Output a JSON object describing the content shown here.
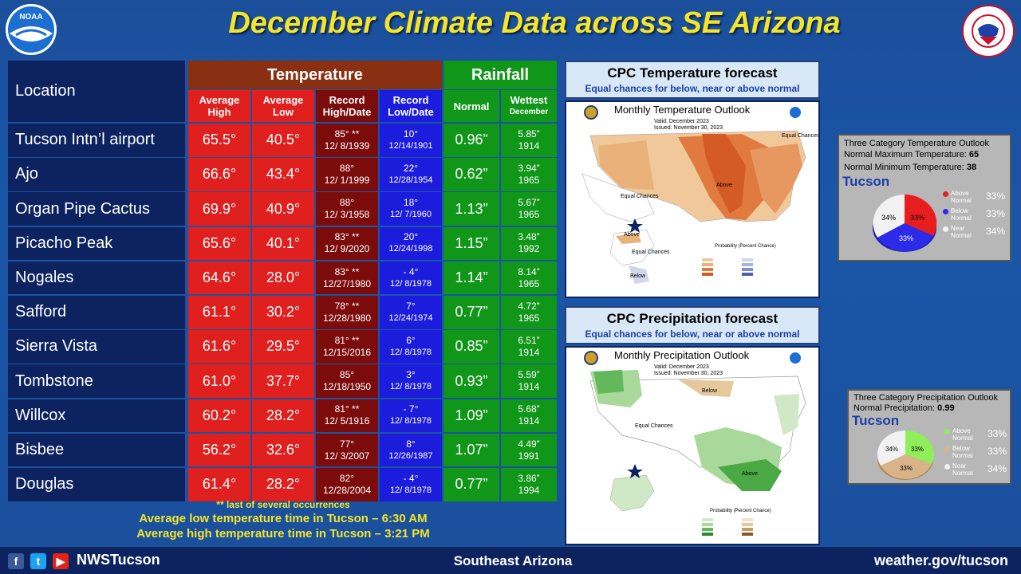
{
  "title": "December Climate Data across SE Arizona",
  "logos": {
    "noaa_text": "NOAA",
    "nws_text": "NATIONAL WEATHER SERVICE"
  },
  "table": {
    "location_header": "Location",
    "temperature_header": "Temperature",
    "rainfall_header": "Rainfall",
    "col_avg_high": "Average High",
    "col_avg_low": "Average Low",
    "col_rec_high": "Record High/Date",
    "col_rec_low": "Record Low/Date",
    "col_normal": "Normal",
    "col_wettest_1": "Wettest",
    "col_wettest_2": "December",
    "rows": [
      {
        "name": "Tucson Intn’l airport",
        "hi": "65.5°",
        "lo": "40.5°",
        "rh": "85° **",
        "rhd": "12/ 8/1939",
        "rl": "10°",
        "rld": "12/14/1901",
        "norm": "0.96”",
        "wet": "5.85”",
        "wety": "1914"
      },
      {
        "name": "Ajo",
        "hi": "66.6°",
        "lo": "43.4°",
        "rh": "88°",
        "rhd": "12/ 1/1999",
        "rl": "22°",
        "rld": "12/28/1954",
        "norm": "0.62”",
        "wet": "3.94”",
        "wety": "1965"
      },
      {
        "name": "Organ Pipe Cactus",
        "hi": "69.9°",
        "lo": "40.9°",
        "rh": "88°",
        "rhd": "12/ 3/1958",
        "rl": "18°",
        "rld": "12/ 7/1960",
        "norm": "1.13”",
        "wet": "5.67”",
        "wety": "1965"
      },
      {
        "name": "Picacho Peak",
        "hi": "65.6°",
        "lo": "40.1°",
        "rh": "83° **",
        "rhd": "12/ 9/2020",
        "rl": "20°",
        "rld": "12/24/1998",
        "norm": "1.15”",
        "wet": "3.48”",
        "wety": "1992"
      },
      {
        "name": "Nogales",
        "hi": "64.6°",
        "lo": "28.0°",
        "rh": "83° **",
        "rhd": "12/27/1980",
        "rl": "- 4°",
        "rld": "12/ 8/1978",
        "norm": "1.14”",
        "wet": "8.14”",
        "wety": "1965"
      },
      {
        "name": "Safford",
        "hi": "61.1°",
        "lo": "30.2°",
        "rh": "78° **",
        "rhd": "12/28/1980",
        "rl": "7°",
        "rld": "12/24/1974",
        "norm": "0.77”",
        "wet": "4.72”",
        "wety": "1965"
      },
      {
        "name": "Sierra Vista",
        "hi": "61.6°",
        "lo": "29.5°",
        "rh": "81° **",
        "rhd": "12/15/2016",
        "rl": "6°",
        "rld": "12/ 8/1978",
        "norm": "0.85”",
        "wet": "6.51”",
        "wety": "1914"
      },
      {
        "name": "Tombstone",
        "hi": "61.0°",
        "lo": "37.7°",
        "rh": "85°",
        "rhd": "12/18/1950",
        "rl": "3°",
        "rld": "12/ 8/1978",
        "norm": "0.93”",
        "wet": "5.59”",
        "wety": "1914"
      },
      {
        "name": "Willcox",
        "hi": "60.2°",
        "lo": "28.2°",
        "rh": "81° **",
        "rhd": "12/ 5/1916",
        "rl": "- 7°",
        "rld": "12/ 8/1978",
        "norm": "1.09”",
        "wet": "5.68”",
        "wety": "1914"
      },
      {
        "name": "Bisbee",
        "hi": "56.2°",
        "lo": "32.6°",
        "rh": "77°",
        "rhd": "12/ 3/2007",
        "rl": "8°",
        "rld": "12/26/1987",
        "norm": "1.07”",
        "wet": "4.49”",
        "wety": "1991"
      },
      {
        "name": "Douglas",
        "hi": "61.4°",
        "lo": "28.2°",
        "rh": "82°",
        "rhd": "12/28/2004",
        "rl": "- 4°",
        "rld": "12/ 8/1978",
        "norm": "0.77”",
        "wet": "3.86”",
        "wety": "1994"
      }
    ]
  },
  "notes": {
    "occurrences": "** last of several occurrences",
    "low_time": "Average low temperature time in Tucson – 6:30 AM",
    "high_time": "Average high temperature time in Tucson – 3:21 PM"
  },
  "temp_panel": {
    "header": "CPC Temperature forecast",
    "sub": "Equal chances for below, near or above normal",
    "map_title": "Monthly Temperature Outlook",
    "valid": "Valid:  December 2023",
    "issued": "Issued:  November 30, 2023",
    "labels": {
      "equal": "Equal Chances",
      "above": "Above",
      "below": "Below",
      "prob": "Probability (Percent Chance)"
    }
  },
  "precip_panel": {
    "header": "CPC Precipitation forecast",
    "sub": "Equal chances for below, near or above normal",
    "map_title": "Monthly Precipitation Outlook",
    "valid": "Valid:  December 2023",
    "issued": "Issued:  November 30, 2023",
    "labels": {
      "equal": "Equal Chances",
      "above": "Above",
      "below": "Below",
      "prob": "Probability (Percent Chance)"
    }
  },
  "temp_info": {
    "title": "Three Category Temperature Outlook",
    "max_label": "Normal Maximum Temperature:",
    "max_val": "65",
    "min_label": "Normal Minimum Temperature:",
    "min_val": "38",
    "city": "Tucson",
    "pie": [
      {
        "label": "Above Normal",
        "pct": "33%",
        "color": "#e81e1e"
      },
      {
        "label": "Below Normal",
        "pct": "33%",
        "color": "#2b2be8"
      },
      {
        "label": "Near Normal",
        "pct": "34%",
        "color": "#f2f2f2"
      }
    ]
  },
  "precip_info": {
    "title": "Three Category Precipitation Outlook",
    "norm_label": "Normal Precipitation:",
    "norm_val": "0.99",
    "city": "Tucson",
    "pie": [
      {
        "label": "Above Normal",
        "pct": "33%",
        "color": "#8fee5a"
      },
      {
        "label": "Below Normal",
        "pct": "33%",
        "color": "#d9b48a"
      },
      {
        "label": "Near Normal",
        "pct": "34%",
        "color": "#f2f2f2"
      }
    ]
  },
  "footer": {
    "handle": "NWSTucson",
    "region": "Southeast Arizona",
    "url": "weather.gov/tucson"
  }
}
